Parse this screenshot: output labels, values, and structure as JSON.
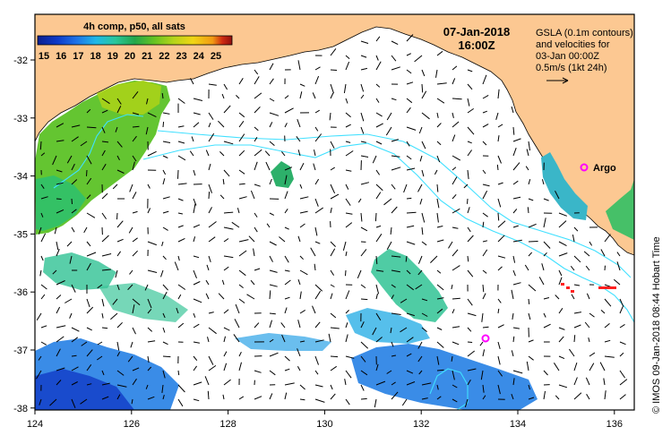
{
  "map": {
    "title_date": "07-Jan-2018",
    "title_time": "16:00Z",
    "colorbar": {
      "title": "4h comp, p50, all sats",
      "ticks": [
        "15",
        "16",
        "17",
        "18",
        "19",
        "20",
        "21",
        "22",
        "23",
        "24",
        "25"
      ],
      "gradient": [
        "#0c1f8f",
        "#0d39c8",
        "#1e73e7",
        "#1fb8e7",
        "#29c69b",
        "#23a64a",
        "#66c322",
        "#b5d41a",
        "#f0d515",
        "#f19a14",
        "#cf2b12",
        "#8f0f0f"
      ]
    },
    "legend": {
      "line1": "GSLA (0.1m contours)",
      "line2": "and velocities for",
      "line3": "03-Jan 00:00Z",
      "line4": "0.5m/s (1kt 24h)"
    },
    "y_axis": {
      "ticks": [
        "-32",
        "-33",
        "-34",
        "-35",
        "-36",
        "-37",
        "-38"
      ]
    },
    "x_axis": {
      "ticks": [
        "124",
        "126",
        "128",
        "130",
        "132",
        "134",
        "136"
      ]
    },
    "argo_label": "Argo",
    "credit": "© IMOS 09-Jan-2018 08:44 Hobart Time",
    "colors": {
      "land": "#fcc892",
      "contour": "#40e0ff",
      "argo": "#ff00ff",
      "frame": "#000000"
    }
  }
}
